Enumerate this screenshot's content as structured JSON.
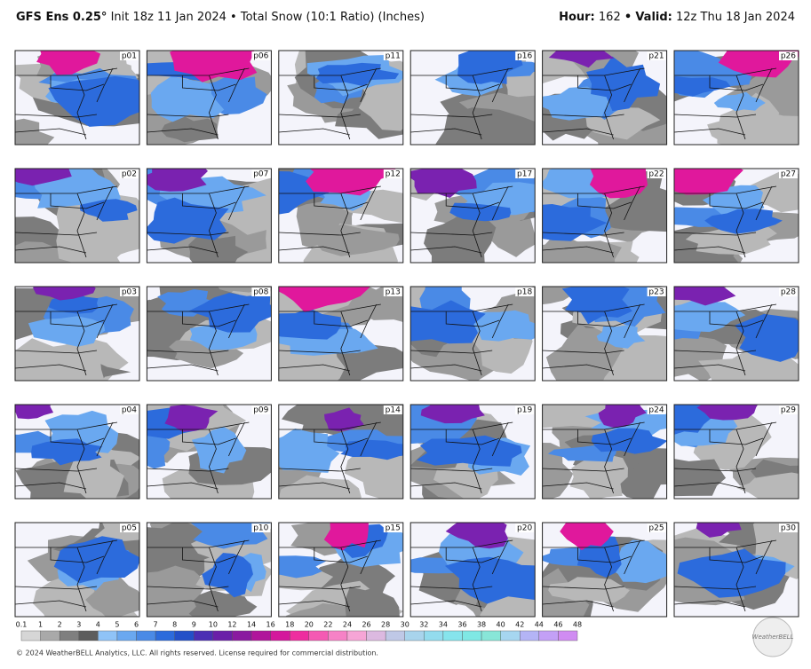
{
  "header": {
    "model": "GFS Ens 0.25°",
    "init": "Init 18z 11 Jan 2024",
    "separator": "•",
    "product": "Total Snow (10:1 Ratio) (Inches)",
    "hour_label": "Hour:",
    "hour": "162",
    "valid_label": "Valid:",
    "valid": "12z Thu 18 Jan 2024"
  },
  "panels": [
    "p01",
    "p02",
    "p03",
    "p04",
    "p05",
    "p06",
    "p07",
    "p08",
    "p09",
    "p10",
    "p11",
    "p12",
    "p13",
    "p14",
    "p15",
    "p16",
    "p17",
    "p18",
    "p19",
    "p20",
    "p21",
    "p22",
    "p23",
    "p24",
    "p25",
    "p26",
    "p27",
    "p28",
    "p29",
    "p30"
  ],
  "colorbar": {
    "labels": [
      "0.1",
      "1",
      "2",
      "3",
      "4",
      "5",
      "6",
      "7",
      "8",
      "9",
      "10",
      "12",
      "14",
      "16",
      "18",
      "20",
      "22",
      "24",
      "26",
      "28",
      "30",
      "32",
      "34",
      "36",
      "38",
      "40",
      "42",
      "44",
      "46",
      "48"
    ],
    "colors": [
      "#d6d6d6",
      "#a9a9a9",
      "#7f7f7f",
      "#5d5d5d",
      "#8fc3f7",
      "#6aa8f0",
      "#4a8ae6",
      "#2c6bdc",
      "#2350c8",
      "#4b2fb4",
      "#6a1fa8",
      "#8a1aa0",
      "#b0159b",
      "#d4189c",
      "#ee2d9f",
      "#f45ab3",
      "#f682c6",
      "#f6a5d6",
      "#dcb9e0",
      "#bfc8e6",
      "#a8d4ec",
      "#93dcee",
      "#86e4ec",
      "#7fe8e4",
      "#88e6d8",
      "#a6d6f0",
      "#b4b4f6",
      "#c3a0f6",
      "#d08cf2"
    ]
  },
  "footer": {
    "copyright": "© 2024 WeatherBELL Analytics, LLC. All rights reserved. License required for commercial distribution.",
    "logo": "WeatherBELL"
  }
}
